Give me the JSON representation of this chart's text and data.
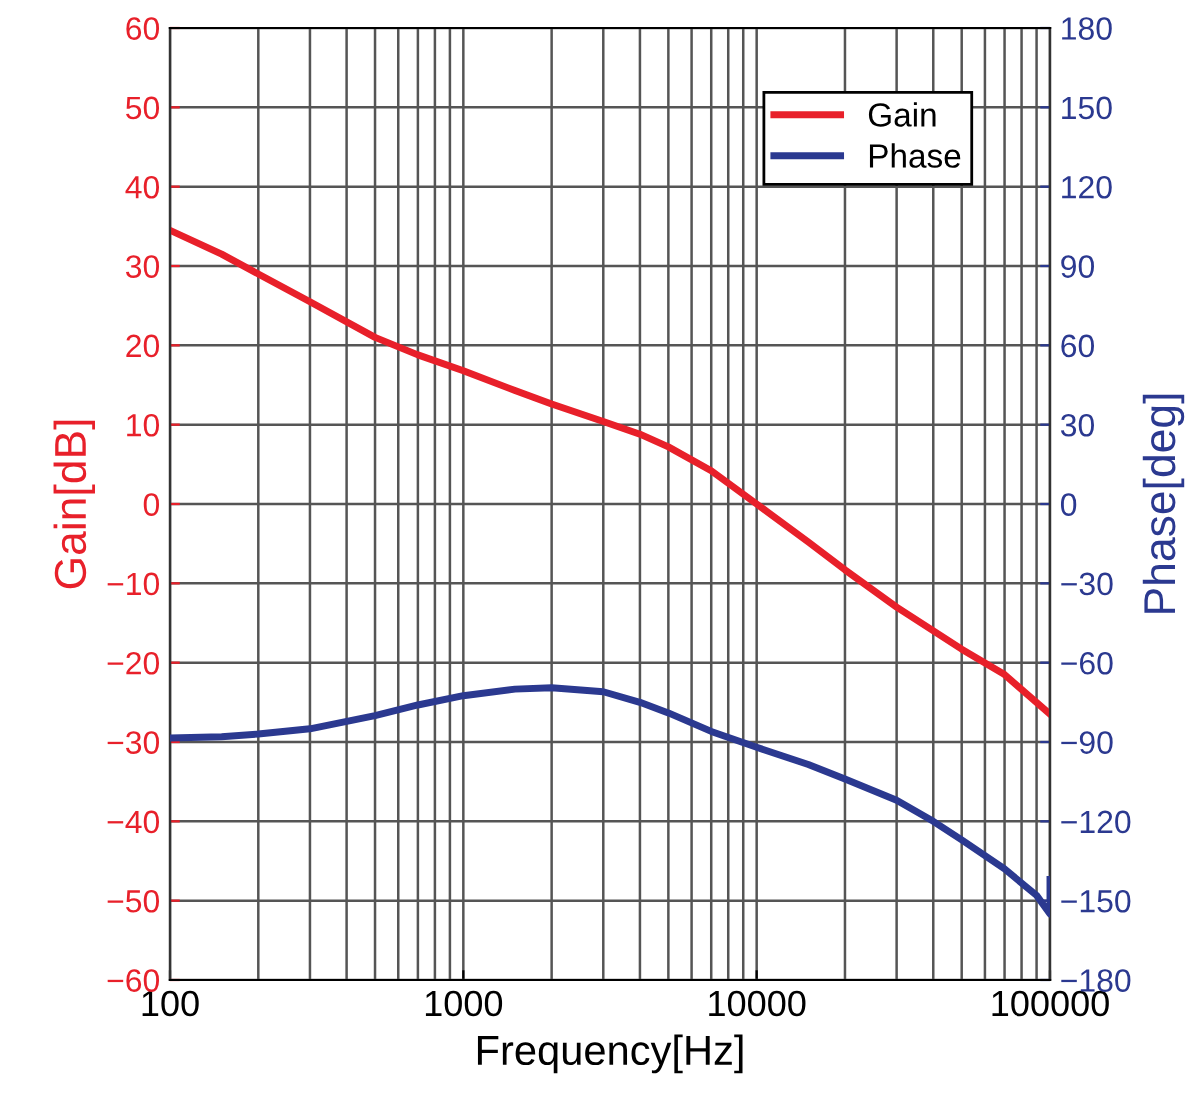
{
  "chart_data": {
    "type": "line",
    "xlabel": "Frequency[Hz]",
    "ylabel": "Gain[dB]",
    "y2label": "Phase[deg]",
    "log": "x",
    "grid": true,
    "legend": "top right",
    "xlim": [
      100,
      100000
    ],
    "xticks": [
      100,
      1000,
      10000,
      100000
    ],
    "ylim": [
      -60,
      60
    ],
    "yticks": [
      60,
      50,
      40,
      30,
      20,
      10,
      0,
      {
        "value": -10,
        "label": "−10"
      },
      {
        "value": -20,
        "label": "−20"
      },
      {
        "value": -30,
        "label": "−30"
      },
      {
        "value": -40,
        "label": "−40"
      },
      {
        "value": -50,
        "label": "−50"
      },
      {
        "value": -60,
        "label": "−60"
      }
    ],
    "y2lim": [
      -180,
      180
    ],
    "y2ticks": [
      180,
      150,
      120,
      90,
      60,
      30,
      0,
      {
        "value": -30,
        "label": "−30"
      },
      {
        "value": -60,
        "label": "−60"
      },
      {
        "value": -90,
        "label": "−90"
      },
      {
        "value": -120,
        "label": "−120"
      },
      {
        "value": -150,
        "label": "−150"
      },
      {
        "value": -180,
        "label": "−180"
      }
    ],
    "series": [
      {
        "name": "Gain",
        "color": "#e8202a",
        "x": [
          100,
          150,
          200,
          300,
          500,
          700,
          1000,
          1500,
          2000,
          3000,
          4000,
          5000,
          7000,
          10000,
          15000,
          20000,
          30000,
          50000,
          70000,
          100000
        ],
        "values": [
          34.5,
          31.5,
          29,
          25.5,
          21,
          18.8,
          16.8,
          14.3,
          12.6,
          10.4,
          8.8,
          7.2,
          4.2,
          0,
          -4.8,
          -8.3,
          -13,
          -18.3,
          -21.5,
          -26.5
        ]
      },
      {
        "name": "Phase",
        "color": "#2b3990",
        "axis": "y2",
        "x": [
          100,
          150,
          200,
          300,
          500,
          700,
          1000,
          1500,
          2000,
          3000,
          4000,
          5000,
          7000,
          10000,
          15000,
          20000,
          30000,
          40000,
          50000,
          70000,
          90000,
          100000,
          100000
        ],
        "values": [
          -88.5,
          -88,
          -87,
          -85,
          -80,
          -76,
          -72.5,
          -70,
          -69.5,
          -71,
          -75,
          -79,
          -86,
          -92,
          -98.5,
          -104,
          -112,
          -120,
          -127,
          -138,
          -148,
          -155,
          -142
        ]
      }
    ]
  }
}
